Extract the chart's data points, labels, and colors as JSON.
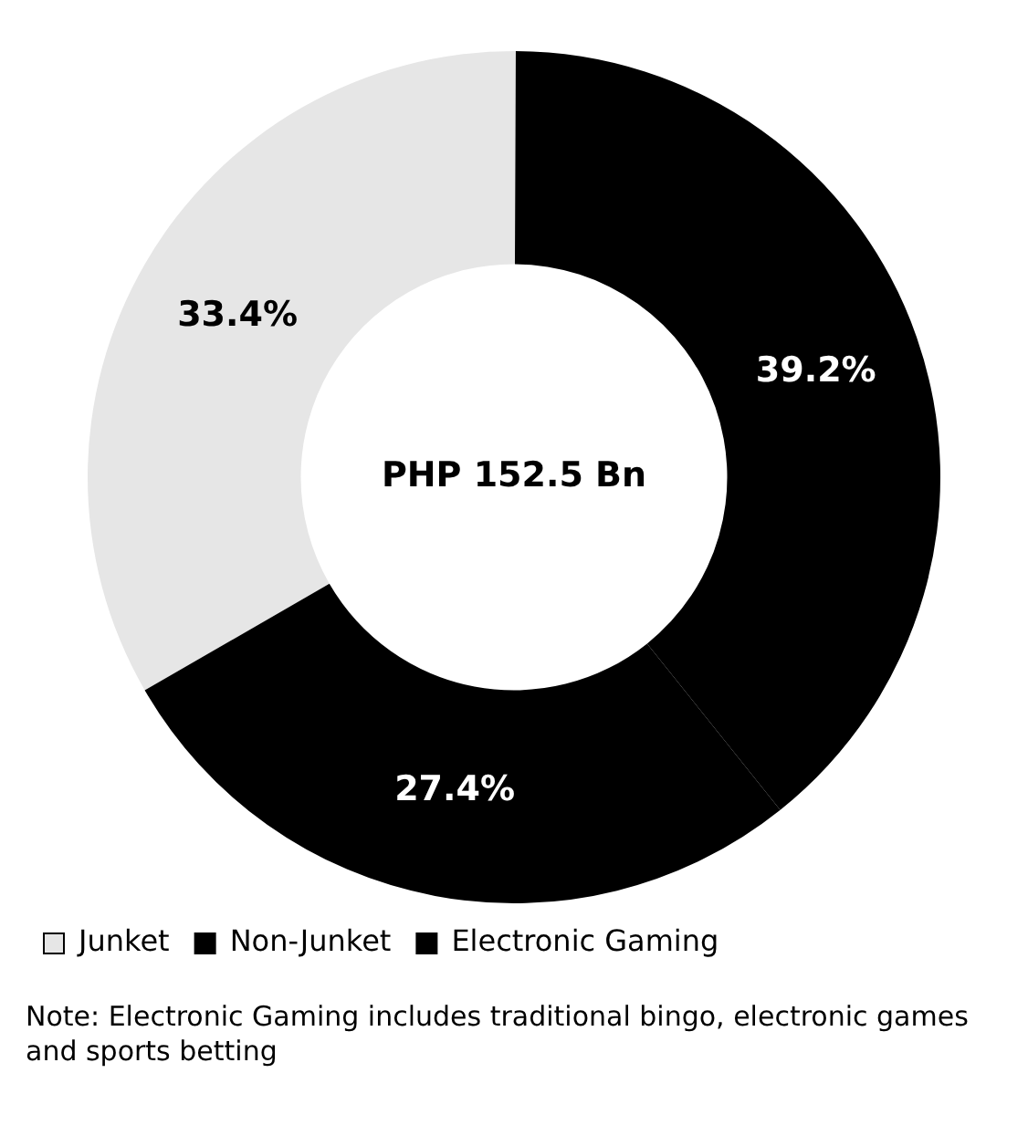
{
  "chart_data": {
    "type": "donut",
    "categories": [
      "Junket",
      "Non-Junket",
      "Electronic Gaming"
    ],
    "values": [
      33.4,
      39.2,
      27.4
    ],
    "colors": [
      "#e6e6e6",
      "#000000",
      "#000000"
    ],
    "value_labels": [
      "33.4%",
      "39.2%",
      "27.4%"
    ],
    "legend": "bottom",
    "annotations": [
      "PHP 152.5 Bn",
      "Note: Electronic Gaming includes traditional bingo, electronic games and sports betting"
    ]
  }
}
